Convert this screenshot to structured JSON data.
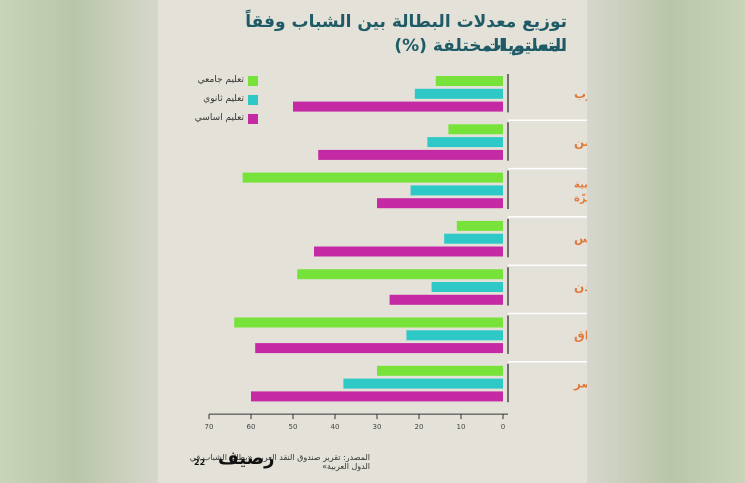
{
  "title_line1": "توزيع معدلات البطالة بين الشباب وفقاً لمستويات",
  "title_line2": "التعليم المختلفة (%)",
  "source": "المصدر: تقرير صندوق النقد العربي «بطالة الشباب في الدول العربية»",
  "logo": "رصيف",
  "logo_number": "22",
  "colors": {
    "university": "#77e33a",
    "secondary": "#2ec9c7",
    "basic": "#c42aa4",
    "country": "#e07a3c",
    "title": "#1f5b66"
  },
  "chart_data": {
    "type": "bar",
    "orientation": "horizontal",
    "categories": [
      "المغرب",
      "اليمن",
      "الضفّة الغربية وقطاع غزّة",
      "تونس",
      "الأردن",
      "العراق",
      "مصر"
    ],
    "category_lines": [
      [
        "المغرب"
      ],
      [
        "اليمن"
      ],
      [
        "الضفّة الغربية",
        "وقطاع غزّة"
      ],
      [
        "تونس"
      ],
      [
        "الأردن"
      ],
      [
        "العراق"
      ],
      [
        "مصر"
      ]
    ],
    "series": [
      {
        "name": "تعليم جامعي",
        "color": "#77e33a",
        "values": [
          16,
          13,
          62,
          11,
          49,
          64,
          30
        ]
      },
      {
        "name": "تعليم ثانوي",
        "color": "#2ec9c7",
        "values": [
          21,
          18,
          22,
          14,
          17,
          23,
          38
        ]
      },
      {
        "name": "تعليم اساسي",
        "color": "#c42aa4",
        "values": [
          50,
          44,
          30,
          45,
          27,
          59,
          60
        ]
      }
    ],
    "xlim": [
      0,
      70
    ],
    "x_ticks": [
      0,
      10,
      20,
      30,
      40,
      50,
      60,
      70
    ],
    "x_direction": "right-to-left",
    "grid": false,
    "legend_position": "top-left"
  }
}
